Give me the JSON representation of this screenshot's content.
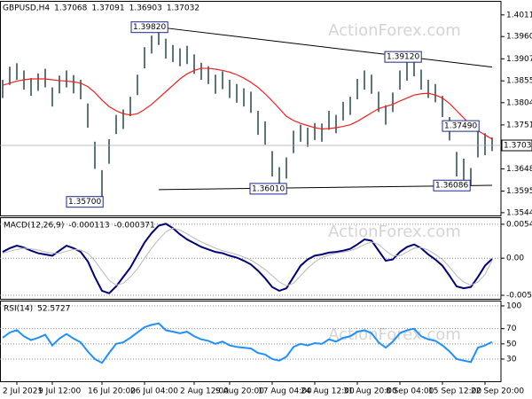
{
  "chart_data": [
    {
      "type": "ohlc",
      "title": "GBPUSD,H4",
      "header_values": [
        1.37068,
        1.37091,
        1.36903,
        1.37032
      ],
      "watermark": "ActionForex.com",
      "categories": [
        null,
        null,
        "2 Jul 2021",
        null,
        null,
        null,
        null,
        "9 Jul 12:00",
        null,
        null,
        null,
        null,
        null,
        null,
        "16 Jul 20:00",
        null,
        null,
        null,
        null,
        null,
        "26 Jul 04:00",
        null,
        null,
        null,
        null,
        null,
        null,
        "2 Aug 12:00",
        null,
        null,
        null,
        null,
        "9 Aug 20:00",
        null,
        null,
        null,
        null,
        null,
        "17 Aug 04:00",
        null,
        null,
        null,
        null,
        null,
        "24 Aug 12:00",
        null,
        null,
        null,
        null,
        null,
        "31 Aug 20:00",
        null,
        null,
        null,
        null,
        null,
        "8 Sep 04:00",
        null,
        null,
        null,
        null,
        null,
        "15 Sep 12:00",
        null,
        null,
        null,
        null,
        null,
        "22 Sep 20:00",
        null
      ],
      "high": [
        1.3858,
        1.3889,
        1.3897,
        1.388,
        1.3862,
        1.3873,
        1.3884,
        1.384,
        1.3868,
        1.388,
        1.3869,
        1.3858,
        1.3802,
        1.3712,
        1.3645,
        1.3718,
        1.3775,
        1.3788,
        1.3818,
        1.387,
        1.3935,
        1.3962,
        1.3982,
        1.3955,
        1.394,
        1.3932,
        1.3938,
        1.3918,
        1.3898,
        1.389,
        1.387,
        1.3878,
        1.3858,
        1.3848,
        1.3838,
        1.383,
        1.3785,
        1.376,
        1.369,
        1.3652,
        1.3675,
        1.3738,
        1.3752,
        1.3745,
        1.3756,
        1.3755,
        1.3785,
        1.3775,
        1.3806,
        1.3818,
        1.386,
        1.388,
        1.387,
        1.383,
        1.3798,
        1.3828,
        1.388,
        1.39,
        1.3912,
        1.3882,
        1.3858,
        1.3848,
        1.382,
        1.377,
        1.3688,
        1.3672,
        1.365,
        1.3749,
        1.3732,
        1.3722
      ],
      "low": [
        1.3815,
        1.3846,
        1.3858,
        1.3835,
        1.382,
        1.3832,
        1.384,
        1.3795,
        1.3826,
        1.384,
        1.3826,
        1.3812,
        1.3745,
        1.3648,
        1.357,
        1.366,
        1.373,
        1.3742,
        1.3772,
        1.3822,
        1.3885,
        1.392,
        1.394,
        1.3908,
        1.39,
        1.389,
        1.3895,
        1.3872,
        1.3858,
        1.3848,
        1.3825,
        1.3836,
        1.3815,
        1.3804,
        1.3795,
        1.378,
        1.3728,
        1.3705,
        1.363,
        1.3601,
        1.3625,
        1.3685,
        1.3712,
        1.37,
        1.3716,
        1.3712,
        1.374,
        1.3732,
        1.3762,
        1.3775,
        1.3812,
        1.3835,
        1.3825,
        1.3782,
        1.3752,
        1.3782,
        1.3835,
        1.3856,
        1.3866,
        1.3835,
        1.3815,
        1.3805,
        1.377,
        1.3715,
        1.363,
        1.362,
        1.3609,
        1.3675,
        1.368,
        1.369
      ],
      "color": "#34505e",
      "overlays": [
        {
          "color": "#f02020",
          "values": [
            1.3845,
            1.385,
            1.3855,
            1.3858,
            1.386,
            1.386,
            1.386,
            1.3858,
            1.3856,
            1.3855,
            1.3853,
            1.385,
            1.3842,
            1.3828,
            1.381,
            1.3795,
            1.3785,
            1.3778,
            1.3775,
            1.3778,
            1.3788,
            1.38,
            1.3815,
            1.383,
            1.3845,
            1.386,
            1.3872,
            1.388,
            1.3885,
            1.3885,
            1.3883,
            1.388,
            1.3876,
            1.387,
            1.3862,
            1.3852,
            1.384,
            1.3825,
            1.3808,
            1.379,
            1.3772,
            1.3762,
            1.3755,
            1.375,
            1.3745,
            1.3742,
            1.3743,
            1.3745,
            1.3748,
            1.3752,
            1.376,
            1.377,
            1.378,
            1.379,
            1.3795,
            1.38,
            1.3808,
            1.3815,
            1.3822,
            1.3825,
            1.3826,
            1.3822,
            1.3815,
            1.3802,
            1.3785,
            1.3768,
            1.375,
            1.3738,
            1.3728,
            1.3718
          ]
        }
      ],
      "current_price": 1.37032,
      "annotations": [
        {
          "value": 1.3982,
          "label": "1.39820"
        },
        {
          "value": 1.357,
          "label": "1.35700"
        },
        {
          "value": 1.3601,
          "label": "1.36010"
        },
        {
          "value": 1.3912,
          "label": "1.39120"
        },
        {
          "value": 1.3749,
          "label": "1.37490"
        },
        1.36086
      ],
      "trendlines": [
        {
          "x": [
            22,
            69
          ],
          "y": [
            1.3982,
            1.3888
          ]
        },
        {
          "x": [
            22,
            69
          ],
          "y": [
            1.3599,
            1.3609
          ]
        }
      ],
      "ylim": [
        1.3538,
        1.4042
      ],
      "yticks": [
        {
          "value": 1.4011,
          "label": "1.40110"
        },
        {
          "value": 1.396,
          "label": "1.39600"
        },
        1.39075,
        1.38555,
        {
          "value": 1.3804,
          "label": "1.38040"
        },
        1.37515,
        {
          "value": 1.3648,
          "label": "1.36480"
        },
        1.35955,
        1.35445
      ]
    },
    {
      "type": "line",
      "title": "MACD(12,26,9)",
      "watermark": "ActionForex.com",
      "series": [
        {
          "color": "#00007a",
          "values": [
            0.001,
            0.0016,
            0.002,
            0.0017,
            0.0012,
            0.0008,
            0.0006,
            0.0004,
            0.0012,
            0.002,
            0.0016,
            0.001,
            -0.0005,
            -0.003,
            -0.0052,
            -0.0056,
            -0.0045,
            -0.003,
            -0.0015,
            0.0005,
            0.0025,
            0.004,
            0.0052,
            0.0055,
            0.0048,
            0.0038,
            0.003,
            0.0024,
            0.0018,
            0.0014,
            0.001,
            0.0008,
            0.0004,
            0.0001,
            -0.0004,
            -0.001,
            -0.002,
            -0.0032,
            -0.0046,
            -0.0052,
            -0.0048,
            -0.003,
            -0.0012,
            -0.0002,
            0.0004,
            0.0006,
            0.0009,
            0.001,
            0.0012,
            0.0015,
            0.0022,
            0.003,
            0.0028,
            0.0012,
            -0.0004,
            -0.0002,
            0.001,
            0.0018,
            0.0022,
            0.0016,
            0.0006,
            -0.0002,
            -0.0012,
            -0.0028,
            -0.0045,
            -0.0048,
            -0.0046,
            -0.003,
            -0.0012,
            -0.000113
          ]
        },
        {
          "color": "#b8b8b8",
          "values": [
            0.0008,
            0.0011,
            0.0014,
            0.0016,
            0.0015,
            0.0013,
            0.001,
            0.0008,
            0.0008,
            0.0011,
            0.0014,
            0.0013,
            0.0008,
            -0.0004,
            -0.002,
            -0.0035,
            -0.0043,
            -0.004,
            -0.003,
            -0.0017,
            0,
            0.0016,
            0.003,
            0.0042,
            0.0048,
            0.0045,
            0.0039,
            0.0032,
            0.0026,
            0.0021,
            0.0016,
            0.0012,
            0.0009,
            0.0006,
            0.0002,
            -0.0003,
            -0.001,
            -0.0018,
            -0.0028,
            -0.0038,
            -0.0044,
            -0.004,
            -0.0028,
            -0.0016,
            -0.0006,
            0.0001,
            0.0005,
            0.0008,
            0.001,
            0.0012,
            0.0016,
            0.0022,
            0.0026,
            0.0022,
            0.0012,
            0.0004,
            0.0004,
            0.001,
            0.0016,
            0.0017,
            0.0013,
            0.0006,
            -0.0002,
            -0.0014,
            -0.0028,
            -0.0038,
            -0.0043,
            -0.0038,
            -0.0026,
            -0.000371
          ]
        }
      ],
      "ylim": [
        -0.00648,
        0.0064
      ],
      "yticks": [
        0.005419,
        {
          "value": 0,
          "label": "0.00"
        },
        -0.005921
      ],
      "grid": true
    },
    {
      "type": "line",
      "title": "RSI(14)",
      "watermark": "ActionForex.com",
      "series": [
        {
          "color": "#1e90ff",
          "values": [
            58,
            65,
            68,
            60,
            55,
            58,
            62,
            48,
            57,
            63,
            57,
            52,
            40,
            30,
            25,
            38,
            50,
            52,
            58,
            65,
            72,
            75,
            77,
            68,
            66,
            64,
            66,
            60,
            56,
            54,
            50,
            53,
            48,
            46,
            45,
            44,
            38,
            36,
            30,
            28,
            33,
            46,
            50,
            48,
            51,
            50,
            56,
            53,
            58,
            60,
            66,
            68,
            64,
            52,
            45,
            53,
            64,
            68,
            70,
            60,
            56,
            54,
            48,
            40,
            30,
            28,
            26,
            45,
            48,
            52.5727
          ]
        }
      ],
      "ylim": [
        0.8,
        105.8
      ],
      "yticks": [
        100,
        70,
        50,
        30
      ],
      "grid": true
    }
  ]
}
